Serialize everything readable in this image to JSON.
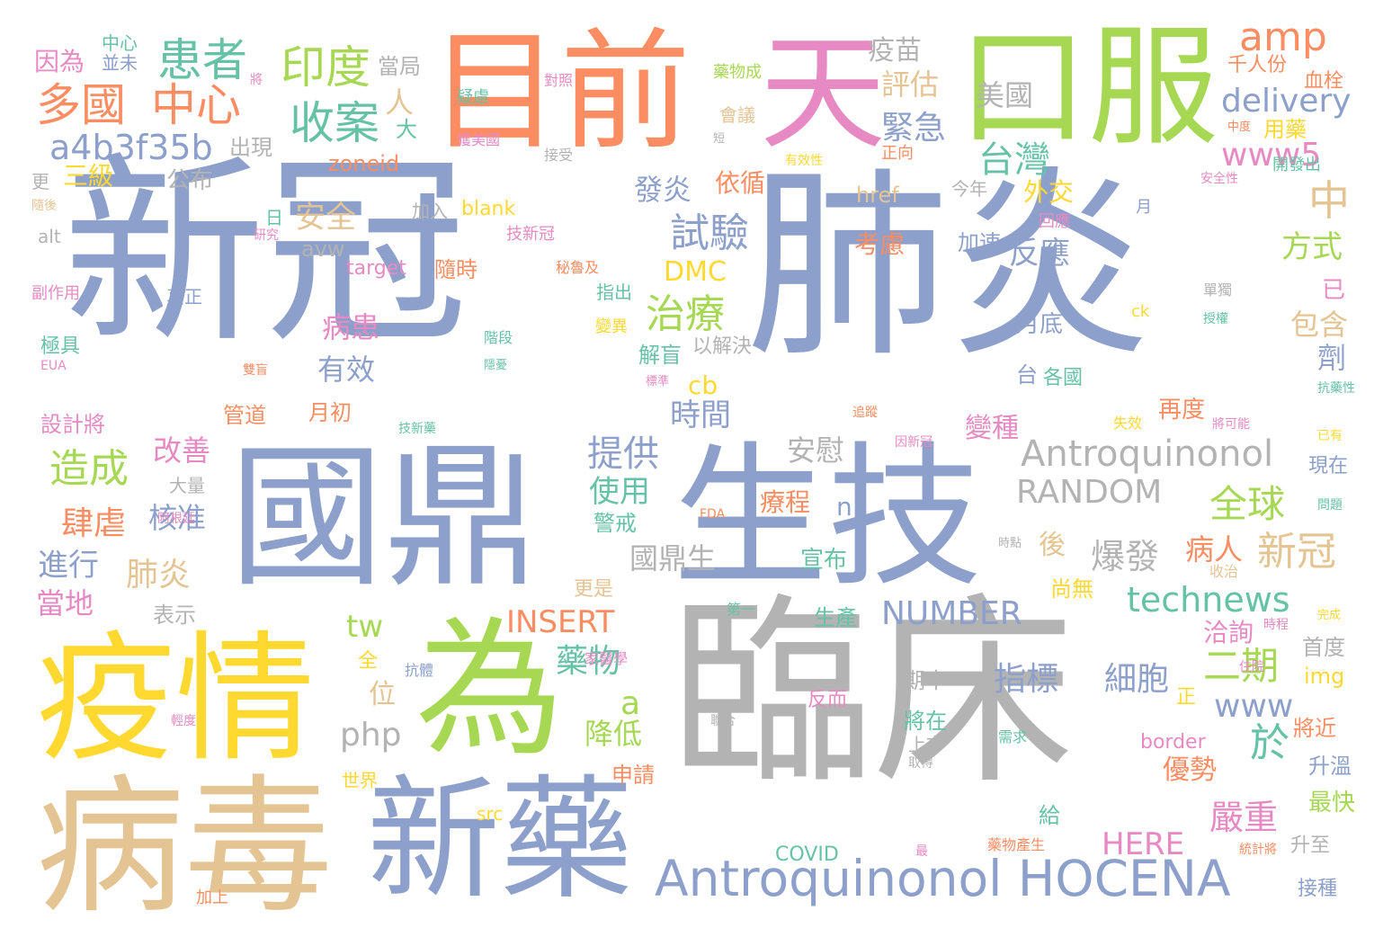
{
  "colors": {
    "blue": "#8da0cb",
    "gray": "#b3b3b3",
    "orange": "#fc8d62",
    "green": "#a6d854",
    "pink": "#e78ac3",
    "teal": "#66c2a5",
    "yellow": "#ffd92f",
    "tan": "#e5c494"
  },
  "words": [
    {
      "text": "新冠"
    },
    {
      "text": "肺炎"
    },
    {
      "text": "臨床"
    },
    {
      "text": "國鼎"
    },
    {
      "text": "生技"
    },
    {
      "text": "目前"
    },
    {
      "text": "天"
    },
    {
      "text": "口服"
    },
    {
      "text": "疫情"
    },
    {
      "text": "為"
    },
    {
      "text": "病毒"
    },
    {
      "text": "新藥"
    },
    {
      "text": "Antroquinonol HOCENA"
    },
    {
      "text": "患者"
    },
    {
      "text": "多國"
    },
    {
      "text": "中心"
    },
    {
      "text": "印度"
    },
    {
      "text": "收案"
    },
    {
      "text": "a4b3f35b"
    },
    {
      "text": "amp"
    },
    {
      "text": "delivery"
    },
    {
      "text": "www5"
    },
    {
      "text": "台灣"
    },
    {
      "text": "中"
    },
    {
      "text": "疫苗"
    },
    {
      "text": "評估"
    },
    {
      "text": "緊急"
    },
    {
      "text": "美國"
    },
    {
      "text": "因為"
    },
    {
      "text": "中心"
    },
    {
      "text": "並未"
    },
    {
      "text": "當局"
    },
    {
      "text": "人"
    },
    {
      "text": "大"
    },
    {
      "text": "出現"
    },
    {
      "text": "三級"
    },
    {
      "text": "公布"
    },
    {
      "text": "更"
    },
    {
      "text": "zoneid"
    },
    {
      "text": "blank"
    },
    {
      "text": "加入"
    },
    {
      "text": "安全"
    },
    {
      "text": "日"
    },
    {
      "text": "發炎"
    },
    {
      "text": "依循"
    },
    {
      "text": "試驗"
    },
    {
      "text": "href"
    },
    {
      "text": "今年"
    },
    {
      "text": "外交"
    },
    {
      "text": "alt"
    },
    {
      "text": "avw"
    },
    {
      "text": "target"
    },
    {
      "text": "隨時"
    },
    {
      "text": "考慮"
    },
    {
      "text": "加速"
    },
    {
      "text": "反應"
    },
    {
      "text": "方式"
    },
    {
      "text": "DMC"
    },
    {
      "text": "治療"
    },
    {
      "text": "副作用"
    },
    {
      "text": "真正"
    },
    {
      "text": "指出"
    },
    {
      "text": "病患"
    },
    {
      "text": "有效"
    },
    {
      "text": "以解決"
    },
    {
      "text": "解盲"
    },
    {
      "text": "月底"
    },
    {
      "text": "已"
    },
    {
      "text": "包含"
    },
    {
      "text": "劑"
    },
    {
      "text": "極具"
    },
    {
      "text": "cb"
    },
    {
      "text": "台"
    },
    {
      "text": "各國"
    },
    {
      "text": "設計將"
    },
    {
      "text": "管道"
    },
    {
      "text": "月初"
    },
    {
      "text": "時間"
    },
    {
      "text": "再度"
    },
    {
      "text": "造成"
    },
    {
      "text": "改善"
    },
    {
      "text": "提供"
    },
    {
      "text": "安慰"
    },
    {
      "text": "變種"
    },
    {
      "text": "Antroquinonol"
    },
    {
      "text": "現在"
    },
    {
      "text": "大量"
    },
    {
      "text": "使用"
    },
    {
      "text": "RANDOM"
    },
    {
      "text": "全球"
    },
    {
      "text": "肆虐"
    },
    {
      "text": "核准"
    },
    {
      "text": "療程"
    },
    {
      "text": "n"
    },
    {
      "text": "進行"
    },
    {
      "text": "肺炎"
    },
    {
      "text": "警戒"
    },
    {
      "text": "國鼎生"
    },
    {
      "text": "宣布"
    },
    {
      "text": "爆發"
    },
    {
      "text": "後"
    },
    {
      "text": "病人"
    },
    {
      "text": "新冠"
    },
    {
      "text": "當地"
    },
    {
      "text": "更是"
    },
    {
      "text": "尚無"
    },
    {
      "text": "technews"
    },
    {
      "text": "表示"
    },
    {
      "text": "INSERT"
    },
    {
      "text": "NUMBER"
    },
    {
      "text": "tw"
    },
    {
      "text": "生產"
    },
    {
      "text": "洽詢"
    },
    {
      "text": "首度"
    },
    {
      "text": "藥物"
    },
    {
      "text": "二期"
    },
    {
      "text": "指標"
    },
    {
      "text": "細胞"
    },
    {
      "text": "php"
    },
    {
      "text": "位"
    },
    {
      "text": "a"
    },
    {
      "text": "全"
    },
    {
      "text": "期中"
    },
    {
      "text": "www"
    },
    {
      "text": "img"
    },
    {
      "text": "降低"
    },
    {
      "text": "將在"
    },
    {
      "text": "於"
    },
    {
      "text": "將近"
    },
    {
      "text": "上市"
    },
    {
      "text": "border"
    },
    {
      "text": "升溫"
    },
    {
      "text": "申請"
    },
    {
      "text": "優勢"
    },
    {
      "text": "世界"
    },
    {
      "text": "最快"
    },
    {
      "text": "嚴重"
    },
    {
      "text": "給"
    },
    {
      "text": "src"
    },
    {
      "text": "HERE"
    },
    {
      "text": "COVID"
    },
    {
      "text": "升至"
    },
    {
      "text": "接種"
    },
    {
      "text": "加上"
    },
    {
      "text": "用藥"
    },
    {
      "text": "千人份"
    },
    {
      "text": "血栓"
    },
    {
      "text": "藥物成"
    },
    {
      "text": "疑慮"
    },
    {
      "text": "獲美國"
    },
    {
      "text": "會議"
    },
    {
      "text": "對照"
    },
    {
      "text": "開發出"
    },
    {
      "text": "接受"
    },
    {
      "text": "正向"
    },
    {
      "text": "有效性"
    },
    {
      "text": "安全性"
    },
    {
      "text": "研究"
    },
    {
      "text": "技新冠"
    },
    {
      "text": "回應"
    },
    {
      "text": "月"
    },
    {
      "text": "秘魯及"
    },
    {
      "text": "單獨"
    },
    {
      "text": "授權"
    },
    {
      "text": "變異"
    },
    {
      "text": "階段"
    },
    {
      "text": "ck"
    },
    {
      "text": "抗藥性"
    },
    {
      "text": "EUA"
    },
    {
      "text": "雙盲"
    },
    {
      "text": "追蹤"
    },
    {
      "text": "技新藥"
    },
    {
      "text": "因新冠"
    },
    {
      "text": "已有"
    },
    {
      "text": "阿根廷"
    },
    {
      "text": "FDA"
    },
    {
      "text": "問題"
    },
    {
      "text": "收治"
    },
    {
      "text": "時點"
    },
    {
      "text": "完成"
    },
    {
      "text": "時程"
    },
    {
      "text": "第一"
    },
    {
      "text": "抗體"
    },
    {
      "text": "家醫學"
    },
    {
      "text": "住院"
    },
    {
      "text": "正"
    },
    {
      "text": "反而"
    },
    {
      "text": "聯合"
    },
    {
      "text": "需求"
    },
    {
      "text": "取得"
    },
    {
      "text": "輕度"
    },
    {
      "text": "藥物產生"
    },
    {
      "text": "統計將"
    },
    {
      "text": "最"
    },
    {
      "text": "失效"
    },
    {
      "text": "將可能"
    },
    {
      "text": "中度"
    },
    {
      "text": "短"
    },
    {
      "text": "隱憂"
    },
    {
      "text": "標準"
    },
    {
      "text": "隨後"
    },
    {
      "text": "將"
    }
  ]
}
